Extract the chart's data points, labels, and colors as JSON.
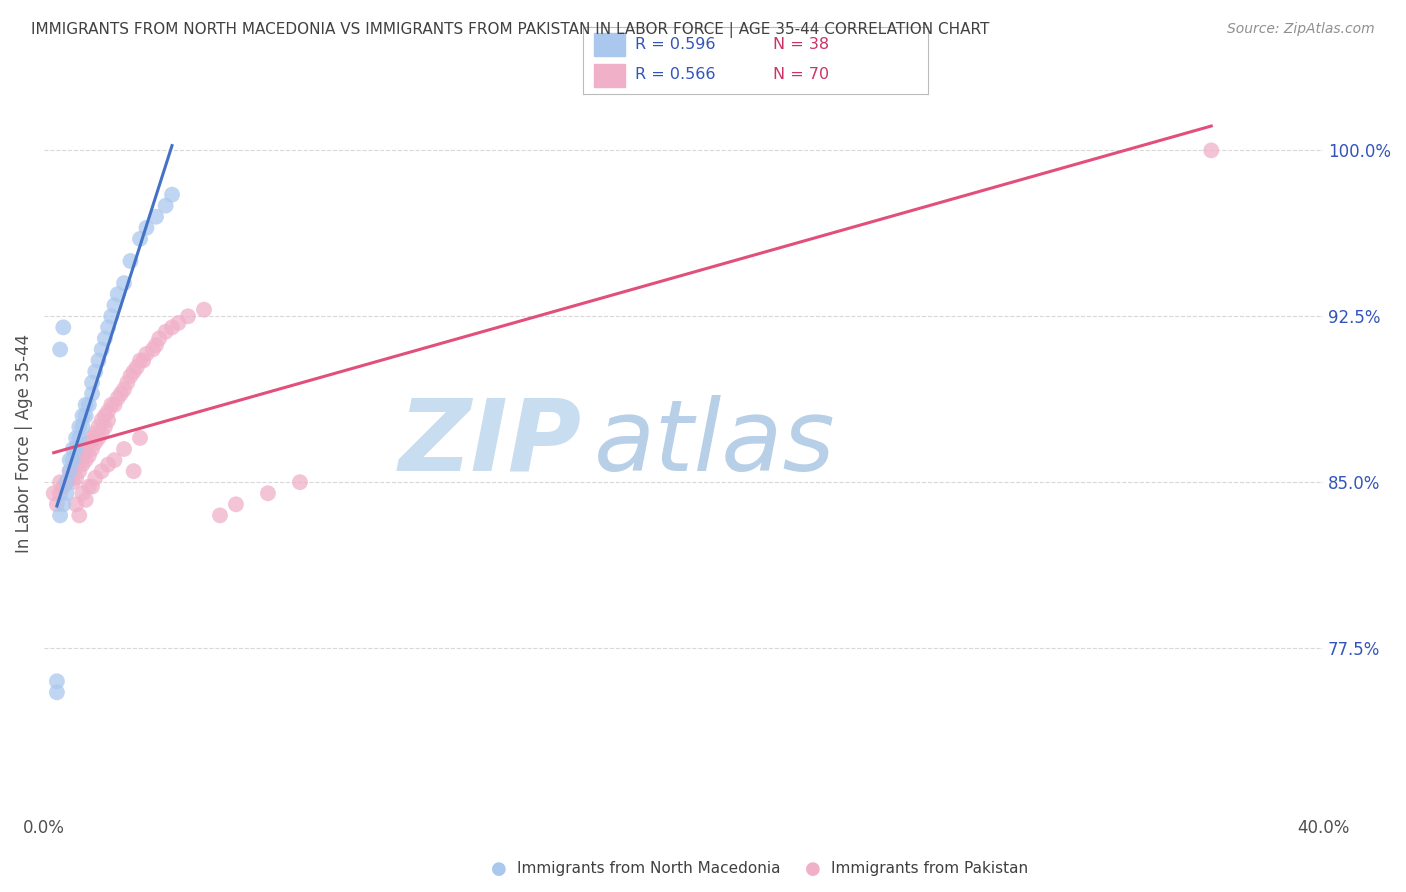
{
  "title": "IMMIGRANTS FROM NORTH MACEDONIA VS IMMIGRANTS FROM PAKISTAN IN LABOR FORCE | AGE 35-44 CORRELATION CHART",
  "source": "Source: ZipAtlas.com",
  "ylabel": "In Labor Force | Age 35-44",
  "right_yticks": [
    77.5,
    85.0,
    92.5,
    100.0
  ],
  "right_ytick_labels": [
    "77.5%",
    "85.0%",
    "92.5%",
    "100.0%"
  ],
  "xlim": [
    0.0,
    40.0
  ],
  "ylim": [
    70.0,
    103.5
  ],
  "watermark_zip": "ZIP",
  "watermark_atlas": "atlas",
  "watermark_color_zip": "#c8dff0",
  "watermark_color_atlas": "#b0d4e8",
  "background_color": "#ffffff",
  "grid_color": "#d8d8d8",
  "title_color": "#404040",
  "source_color": "#909090",
  "axis_label_color": "#505050",
  "right_tick_color": "#3355bb",
  "legend_R_color": "#3355bb",
  "legend_N_color": "#cc3366",
  "series": [
    {
      "name": "Immigrants from North Macedonia",
      "R": 0.596,
      "N": 38,
      "color_scatter": "#aac8ee",
      "color_line": "#4472c4",
      "x": [
        0.4,
        0.4,
        0.5,
        0.6,
        0.7,
        0.7,
        0.8,
        0.8,
        0.9,
        0.9,
        1.0,
        1.0,
        1.1,
        1.1,
        1.2,
        1.2,
        1.3,
        1.3,
        1.4,
        1.5,
        1.5,
        1.6,
        1.7,
        1.8,
        1.9,
        2.0,
        2.1,
        2.2,
        2.3,
        2.5,
        2.7,
        3.0,
        3.2,
        3.5,
        3.8,
        4.0,
        0.5,
        0.6
      ],
      "y": [
        75.5,
        76.0,
        83.5,
        84.0,
        84.5,
        85.0,
        85.5,
        86.0,
        86.0,
        86.5,
        86.5,
        87.0,
        87.0,
        87.5,
        87.5,
        88.0,
        88.0,
        88.5,
        88.5,
        89.0,
        89.5,
        90.0,
        90.5,
        91.0,
        91.5,
        92.0,
        92.5,
        93.0,
        93.5,
        94.0,
        95.0,
        96.0,
        96.5,
        97.0,
        97.5,
        98.0,
        91.0,
        92.0
      ]
    },
    {
      "name": "Immigrants from Pakistan",
      "R": 0.566,
      "N": 70,
      "color_scatter": "#f0b0c8",
      "color_line": "#e0507a",
      "x": [
        0.3,
        0.4,
        0.5,
        0.5,
        0.6,
        0.7,
        0.8,
        0.8,
        0.9,
        0.9,
        1.0,
        1.0,
        1.1,
        1.1,
        1.2,
        1.2,
        1.3,
        1.3,
        1.4,
        1.4,
        1.5,
        1.5,
        1.6,
        1.6,
        1.7,
        1.7,
        1.8,
        1.8,
        1.9,
        1.9,
        2.0,
        2.0,
        2.1,
        2.2,
        2.3,
        2.4,
        2.5,
        2.6,
        2.7,
        2.8,
        2.9,
        3.0,
        3.1,
        3.2,
        3.4,
        3.5,
        3.6,
        3.8,
        4.0,
        4.2,
        4.5,
        5.0,
        5.5,
        6.0,
        7.0,
        8.0,
        1.0,
        1.2,
        1.4,
        1.6,
        1.8,
        2.0,
        2.2,
        2.5,
        3.0,
        1.1,
        1.3,
        1.5,
        36.5,
        2.8
      ],
      "y": [
        84.5,
        84.0,
        84.5,
        85.0,
        84.8,
        85.0,
        85.2,
        85.5,
        85.0,
        85.5,
        85.2,
        85.8,
        85.5,
        86.0,
        85.8,
        86.2,
        86.0,
        86.5,
        86.2,
        86.8,
        86.5,
        87.0,
        86.8,
        87.2,
        87.0,
        87.5,
        87.2,
        87.8,
        87.5,
        88.0,
        87.8,
        88.2,
        88.5,
        88.5,
        88.8,
        89.0,
        89.2,
        89.5,
        89.8,
        90.0,
        90.2,
        90.5,
        90.5,
        90.8,
        91.0,
        91.2,
        91.5,
        91.8,
        92.0,
        92.2,
        92.5,
        92.8,
        83.5,
        84.0,
        84.5,
        85.0,
        84.0,
        84.5,
        84.8,
        85.2,
        85.5,
        85.8,
        86.0,
        86.5,
        87.0,
        83.5,
        84.2,
        84.8,
        100.0,
        85.5
      ]
    }
  ]
}
